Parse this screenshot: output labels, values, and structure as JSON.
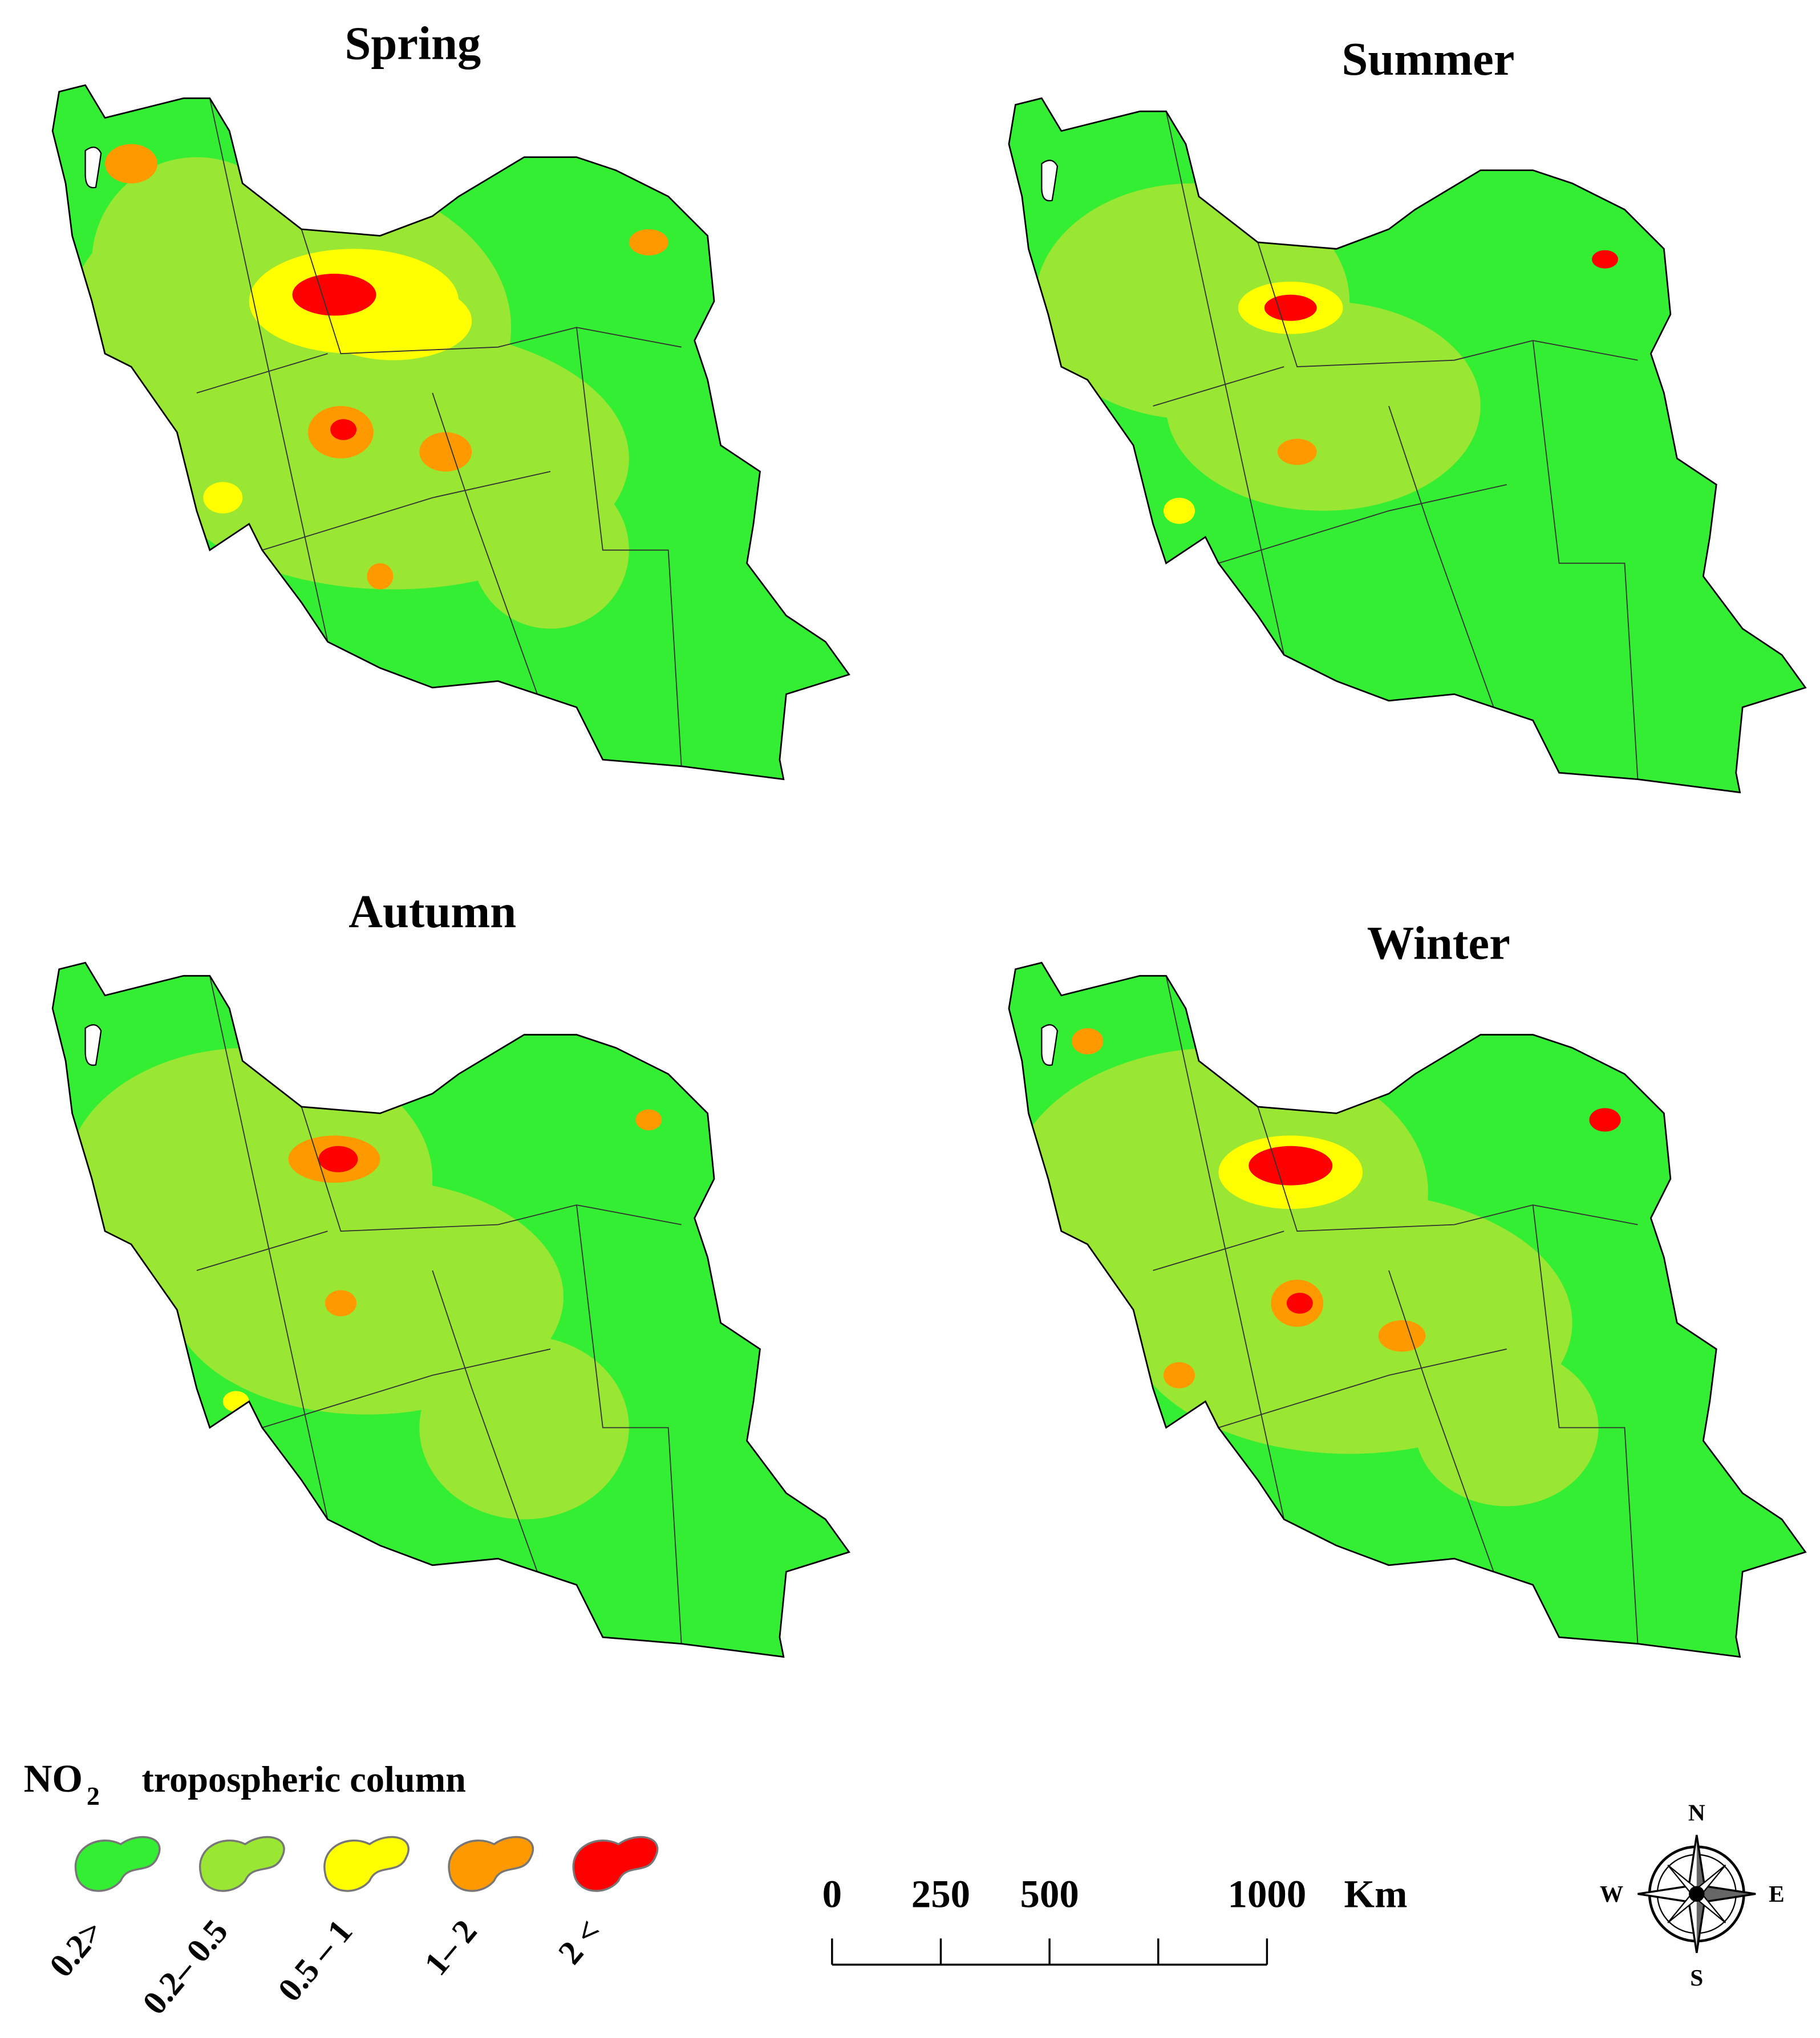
{
  "maps": [
    {
      "title": "Spring"
    },
    {
      "title": "Summer"
    },
    {
      "title": "Autumn"
    },
    {
      "title": "Winter"
    }
  ],
  "legend": {
    "title_main": "NO",
    "title_sub": "2",
    "title_rest": "tropospheric column",
    "items": [
      {
        "label": "0.2>",
        "color": "#33ee33"
      },
      {
        "label": "0.2– 0.5",
        "color": "#99e633"
      },
      {
        "label": "0.5 – 1",
        "color": "#ffff00"
      },
      {
        "label": "1– 2",
        "color": "#ff9900"
      },
      {
        "label": "2 <",
        "color": "#ff0000"
      }
    ]
  },
  "scale_bar": {
    "ticks": [
      0,
      250,
      500,
      1000
    ],
    "max": 1000,
    "unit": "Km"
  },
  "compass": {
    "north": "N",
    "south": "S",
    "east": "E",
    "west": "W"
  }
}
